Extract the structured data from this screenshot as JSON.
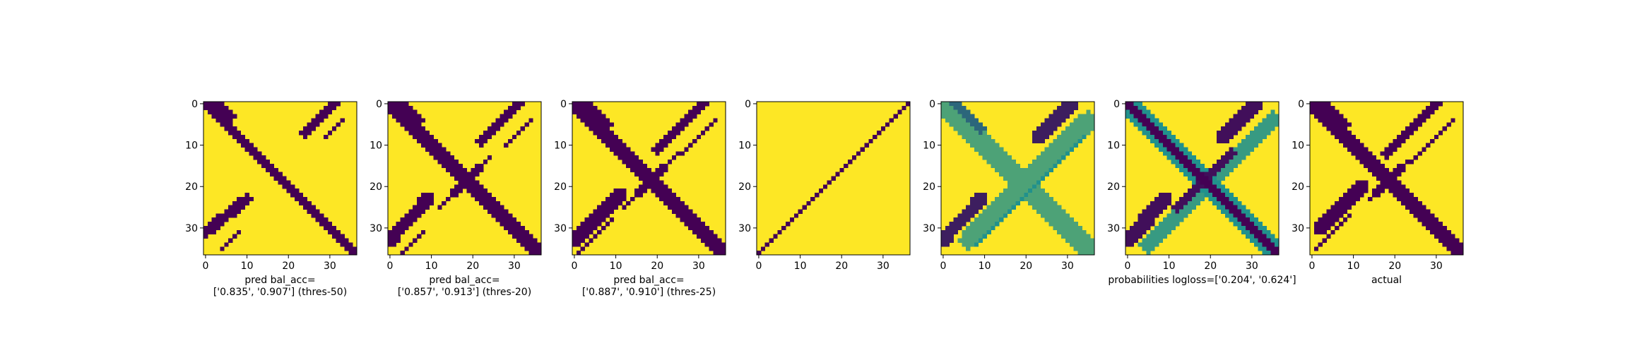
{
  "colors": {
    "low": "#440154",
    "mid": "#21918c",
    "high": "#fde725",
    "axis": "#000000"
  },
  "chart_data": [
    {
      "type": "heatmap",
      "grid_size": 37,
      "xticks": [
        0,
        10,
        20,
        30
      ],
      "yticks": [
        0,
        10,
        20,
        30
      ],
      "caption": [
        "pred bal_acc=",
        "['0.835', '0.907'] (thres-50)"
      ],
      "segments": [
        {
          "kind": "diag",
          "from": [
            0,
            0
          ],
          "to": [
            36,
            36
          ],
          "width": 1.4,
          "value": 0
        },
        {
          "kind": "diag",
          "from": [
            0,
            3
          ],
          "to": [
            3,
            6
          ],
          "width": 1.0,
          "value": 0
        },
        {
          "kind": "anti",
          "from": [
            0,
            31
          ],
          "to": [
            7,
            24
          ],
          "width": 1.1,
          "value": 0
        },
        {
          "kind": "anti",
          "from": [
            4,
            33
          ],
          "to": [
            8,
            29
          ],
          "width": 0.6,
          "value": 0
        },
        {
          "kind": "anti",
          "from": [
            23,
            10
          ],
          "to": [
            31,
            0
          ],
          "width": 1.4,
          "value": 0
        },
        {
          "kind": "anti",
          "from": [
            31,
            8
          ],
          "to": [
            35,
            4
          ],
          "width": 0.6,
          "value": 0
        }
      ]
    },
    {
      "type": "heatmap",
      "grid_size": 37,
      "xticks": [
        0,
        10,
        20,
        30
      ],
      "yticks": [
        0,
        10,
        20,
        30
      ],
      "caption": [
        "pred bal_acc=",
        "['0.857', '0.913'] (thres-20)"
      ],
      "segments": [
        {
          "kind": "diag",
          "from": [
            0,
            0
          ],
          "to": [
            36,
            36
          ],
          "width": 1.5,
          "value": 0
        },
        {
          "kind": "diag",
          "from": [
            0,
            3
          ],
          "to": [
            4,
            7
          ],
          "width": 1.0,
          "value": 0
        },
        {
          "kind": "anti",
          "from": [
            0,
            31
          ],
          "to": [
            9,
            22
          ],
          "width": 1.1,
          "value": 0
        },
        {
          "kind": "anti",
          "from": [
            4,
            34
          ],
          "to": [
            10,
            28
          ],
          "width": 0.6,
          "value": 0
        },
        {
          "kind": "anti",
          "from": [
            13,
            24
          ],
          "to": [
            20,
            17
          ],
          "width": 0.6,
          "value": 0
        },
        {
          "kind": "anti",
          "from": [
            16,
            21
          ],
          "to": [
            21,
            16
          ],
          "width": 1.3,
          "value": 0
        },
        {
          "kind": "anti",
          "from": [
            21,
            16
          ],
          "to": [
            25,
            12
          ],
          "width": 0.6,
          "value": 0
        },
        {
          "kind": "anti",
          "from": [
            23,
            9
          ],
          "to": [
            33,
            0
          ],
          "width": 1.5,
          "value": 0
        },
        {
          "kind": "anti",
          "from": [
            31,
            8
          ],
          "to": [
            36,
            3
          ],
          "width": 0.6,
          "value": 0
        }
      ]
    },
    {
      "type": "heatmap",
      "grid_size": 37,
      "xticks": [
        0,
        10,
        20,
        30
      ],
      "yticks": [
        0,
        10,
        20,
        30
      ],
      "caption": [
        "pred bal_acc=",
        "['0.887', '0.910'] (thres-25)"
      ],
      "segments": [
        {
          "kind": "diag",
          "from": [
            0,
            0
          ],
          "to": [
            36,
            36
          ],
          "width": 1.5,
          "value": 0
        },
        {
          "kind": "diag",
          "from": [
            0,
            3
          ],
          "to": [
            5,
            8
          ],
          "width": 1.0,
          "value": 0
        },
        {
          "kind": "anti",
          "from": [
            0,
            31
          ],
          "to": [
            11,
            20
          ],
          "width": 1.1,
          "value": 0
        },
        {
          "kind": "anti",
          "from": [
            4,
            34
          ],
          "to": [
            12,
            26
          ],
          "width": 0.6,
          "value": 0
        },
        {
          "kind": "anti",
          "from": [
            12,
            25
          ],
          "to": [
            25,
            12
          ],
          "width": 0.7,
          "value": 0
        },
        {
          "kind": "anti",
          "from": [
            16,
            21
          ],
          "to": [
            21,
            16
          ],
          "width": 1.3,
          "value": 0
        },
        {
          "kind": "anti",
          "from": [
            22,
            11
          ],
          "to": [
            33,
            0
          ],
          "width": 1.5,
          "value": 0
        },
        {
          "kind": "anti",
          "from": [
            28,
            9
          ],
          "to": [
            36,
            1
          ],
          "width": 0.6,
          "value": 0
        }
      ]
    },
    {
      "type": "heatmap",
      "grid_size": 37,
      "xticks": [
        0,
        10,
        20,
        30
      ],
      "yticks": [
        0,
        10,
        20,
        30
      ],
      "caption": [],
      "segments": [
        {
          "kind": "anti",
          "from": [
            0,
            36
          ],
          "to": [
            36,
            0
          ],
          "width": 0.5,
          "value": 0
        }
      ]
    },
    {
      "type": "heatmap",
      "grid_size": 37,
      "xticks": [
        0,
        10,
        20,
        30
      ],
      "yticks": [
        0,
        10,
        20,
        30
      ],
      "caption": [],
      "segments": [
        {
          "kind": "diag",
          "from": [
            0,
            0
          ],
          "to": [
            36,
            36
          ],
          "width": 2.4,
          "value": 0.6
        },
        {
          "kind": "diag",
          "from": [
            0,
            0
          ],
          "to": [
            36,
            36
          ],
          "width": 0.5,
          "value": 0.85
        },
        {
          "kind": "diag",
          "from": [
            0,
            3
          ],
          "to": [
            6,
            9
          ],
          "width": 1.0,
          "value": 0.35
        },
        {
          "kind": "anti",
          "from": [
            0,
            31
          ],
          "to": [
            8,
            23
          ],
          "width": 1.5,
          "value": 0.1
        },
        {
          "kind": "anti",
          "from": [
            23,
            9
          ],
          "to": [
            33,
            0
          ],
          "width": 1.5,
          "value": 0.1
        },
        {
          "kind": "anti",
          "from": [
            4,
            35
          ],
          "to": [
            33,
            6
          ],
          "width": 2.2,
          "value": 0.6
        },
        {
          "kind": "anti",
          "from": [
            8,
            34
          ],
          "to": [
            34,
            8
          ],
          "width": 0.5,
          "value": 0.5
        }
      ]
    },
    {
      "type": "heatmap",
      "grid_size": 37,
      "xticks": [
        0,
        10,
        20,
        30
      ],
      "yticks": [
        0,
        10,
        20,
        30
      ],
      "caption": [
        "probabilities logloss=['0.204', '0.624']"
      ],
      "segments": [
        {
          "kind": "diag",
          "from": [
            0,
            0
          ],
          "to": [
            36,
            36
          ],
          "width": 2.8,
          "value": 0.5
        },
        {
          "kind": "diag",
          "from": [
            0,
            0
          ],
          "to": [
            36,
            36
          ],
          "width": 1.4,
          "value": 0
        },
        {
          "kind": "anti",
          "from": [
            0,
            31
          ],
          "to": [
            8,
            23
          ],
          "width": 1.8,
          "value": 0.05
        },
        {
          "kind": "anti",
          "from": [
            23,
            9
          ],
          "to": [
            33,
            0
          ],
          "width": 1.8,
          "value": 0.05
        },
        {
          "kind": "anti",
          "from": [
            4,
            35
          ],
          "to": [
            34,
            5
          ],
          "width": 2.0,
          "value": 0.55
        },
        {
          "kind": "anti",
          "from": [
            12,
            25
          ],
          "to": [
            25,
            12
          ],
          "width": 1.0,
          "value": 0.05
        }
      ]
    },
    {
      "type": "heatmap",
      "grid_size": 37,
      "xticks": [
        0,
        10,
        20,
        30
      ],
      "yticks": [
        0,
        10,
        20,
        30
      ],
      "caption": [
        "actual"
      ],
      "segments": [
        {
          "kind": "diag",
          "from": [
            0,
            0
          ],
          "to": [
            36,
            36
          ],
          "width": 1.5,
          "value": 0
        },
        {
          "kind": "diag",
          "from": [
            0,
            3
          ],
          "to": [
            5,
            8
          ],
          "width": 1.0,
          "value": 0
        },
        {
          "kind": "anti",
          "from": [
            0,
            30
          ],
          "to": [
            12,
            18
          ],
          "width": 1.1,
          "value": 0
        },
        {
          "kind": "anti",
          "from": [
            4,
            34
          ],
          "to": [
            14,
            24
          ],
          "width": 0.6,
          "value": 0
        },
        {
          "kind": "anti",
          "from": [
            14,
            23
          ],
          "to": [
            23,
            14
          ],
          "width": 0.6,
          "value": 0
        },
        {
          "kind": "anti",
          "from": [
            16,
            21
          ],
          "to": [
            21,
            16
          ],
          "width": 1.4,
          "value": 0
        },
        {
          "kind": "anti",
          "from": [
            20,
            12
          ],
          "to": [
            30,
            2
          ],
          "width": 1.5,
          "value": 0
        },
        {
          "kind": "anti",
          "from": [
            27,
            9
          ],
          "to": [
            35,
            1
          ],
          "width": 0.6,
          "value": 0
        }
      ]
    }
  ]
}
